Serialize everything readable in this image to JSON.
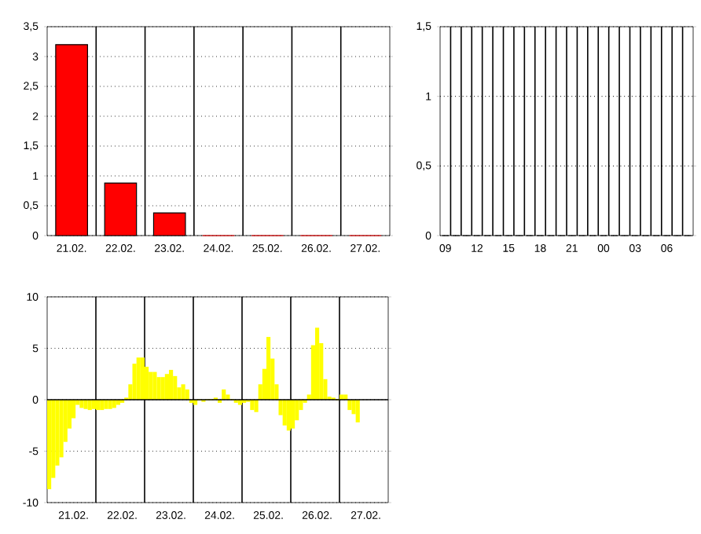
{
  "chart_data": [
    {
      "type": "bar",
      "categories": [
        "21.02.",
        "22.02.",
        "23.02.",
        "24.02.",
        "25.02.",
        "26.02.",
        "27.02."
      ],
      "values": [
        3.2,
        0.88,
        0.38,
        0,
        0,
        0,
        0
      ],
      "color": "#ff0000",
      "ylim": [
        0,
        3.5
      ],
      "yticks": [
        0,
        {
          "value": 0.5,
          "label": "0,5"
        },
        1,
        {
          "value": 1.5,
          "label": "1,5"
        },
        2,
        {
          "value": 2.5,
          "label": "2,5"
        },
        3,
        {
          "value": 3.5,
          "label": "3,5"
        }
      ],
      "grid": true
    },
    {
      "type": "bar",
      "categories": [
        "09",
        null,
        null,
        "12",
        null,
        null,
        "15",
        null,
        null,
        "18",
        null,
        null,
        "21",
        null,
        null,
        "00",
        null,
        null,
        "03",
        null,
        null,
        "06",
        null,
        null
      ],
      "values": [
        0,
        0,
        0,
        0,
        0,
        0,
        0,
        0,
        0,
        0,
        0,
        0,
        0,
        0,
        0,
        0,
        0,
        0,
        0,
        0,
        0,
        0,
        0,
        0
      ],
      "color": "#000000",
      "ylim": [
        0,
        1.5
      ],
      "yticks": [
        0,
        {
          "value": 0.5,
          "label": "0,5"
        },
        1,
        {
          "value": 1.5,
          "label": "1,5"
        }
      ],
      "grid": true
    },
    {
      "type": "bar",
      "categories": [
        null,
        null,
        null,
        null,
        null,
        null,
        "21.02.",
        null,
        null,
        null,
        null,
        null,
        null,
        null,
        null,
        null,
        null,
        null,
        "22.02.",
        null,
        null,
        null,
        null,
        null,
        null,
        null,
        null,
        null,
        null,
        null,
        "23.02.",
        null,
        null,
        null,
        null,
        null,
        null,
        null,
        null,
        null,
        null,
        null,
        "24.02.",
        null,
        null,
        null,
        null,
        null,
        null,
        null,
        null,
        null,
        null,
        null,
        "25.02.",
        null,
        null,
        null,
        null,
        null,
        null,
        null,
        null,
        null,
        null,
        null,
        "26.02.",
        null,
        null,
        null,
        null,
        null,
        null,
        null,
        null,
        null,
        null,
        null,
        "27.02.",
        null,
        null,
        null,
        null,
        null
      ],
      "values": [
        -8.7,
        -7.6,
        -6.4,
        -5.6,
        -4.1,
        -2.8,
        -1.8,
        -0.5,
        -0.8,
        -0.9,
        -1.0,
        -0.9,
        -1.0,
        -1.0,
        -0.9,
        -0.9,
        -0.8,
        -0.5,
        -0.3,
        0.2,
        1.5,
        3.5,
        4.1,
        4.1,
        3.2,
        2.7,
        2.7,
        2.2,
        2.2,
        2.5,
        2.9,
        2.3,
        1.2,
        1.5,
        1.0,
        -0.3,
        -0.5,
        0,
        -0.2,
        0,
        0,
        0.2,
        -0.3,
        1.0,
        0.5,
        0,
        -0.3,
        -0.5,
        -0.3,
        -0.2,
        -1.0,
        -1.2,
        1.5,
        3.0,
        6.1,
        4.0,
        1.5,
        -1.5,
        -2.5,
        -3.0,
        -2.8,
        -2.0,
        -1.0,
        -0.3,
        0.5,
        5.3,
        7.0,
        5.5,
        2.0,
        0.3,
        0.2,
        0,
        0.5,
        0.5,
        -1.0,
        -1.4,
        -2.2,
        null,
        null,
        null,
        null,
        null,
        null,
        null
      ],
      "color": "#ffff00",
      "ylim": [
        -10,
        10
      ],
      "yticks": [
        -10,
        -5,
        0,
        5,
        10
      ],
      "grid": true
    }
  ]
}
